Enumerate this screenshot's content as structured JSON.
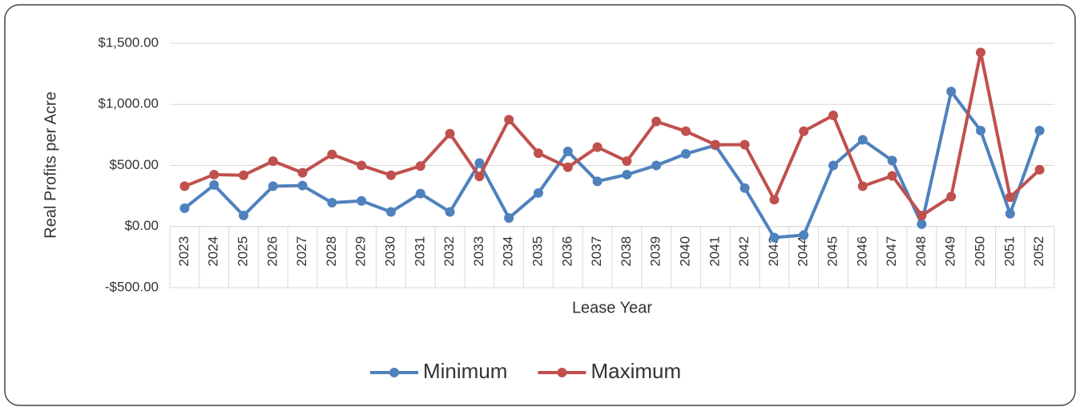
{
  "chart_data": {
    "type": "line",
    "y_label": "Real Profits  per Acre",
    "x_label": "Lease Year",
    "categories": [
      "2023",
      "2024",
      "2025",
      "2026",
      "2027",
      "2028",
      "2029",
      "2030",
      "2031",
      "2032",
      "2033",
      "2034",
      "2035",
      "2036",
      "2037",
      "2038",
      "2039",
      "2040",
      "2041",
      "2042",
      "2043",
      "2044",
      "2045",
      "2046",
      "2047",
      "2048",
      "2049",
      "2050",
      "2051",
      "2052"
    ],
    "series": [
      {
        "name": "Minimum",
        "color": "#4f81bd",
        "values": [
          150,
          340,
          90,
          330,
          335,
          195,
          210,
          120,
          270,
          120,
          520,
          70,
          275,
          615,
          370,
          425,
          500,
          595,
          665,
          315,
          -90,
          -70,
          500,
          710,
          540,
          20,
          1105,
          785,
          105,
          785
        ]
      },
      {
        "name": "Maximum",
        "color": "#c0504d",
        "values": [
          330,
          425,
          420,
          535,
          440,
          590,
          500,
          420,
          495,
          760,
          410,
          875,
          600,
          485,
          650,
          535,
          860,
          780,
          670,
          670,
          220,
          780,
          910,
          330,
          415,
          90,
          245,
          1425,
          240,
          465
        ]
      }
    ],
    "ylim": [
      -500,
      1500
    ],
    "yticks": [
      {
        "value": -500,
        "label": "-$500.00"
      },
      {
        "value": 0,
        "label": "$0.00"
      },
      {
        "value": 500,
        "label": "$500.00"
      },
      {
        "value": 1000,
        "label": "$1,000.00"
      },
      {
        "value": 1500,
        "label": "$1,500.00"
      }
    ],
    "grid": true,
    "legend": "bottom"
  }
}
